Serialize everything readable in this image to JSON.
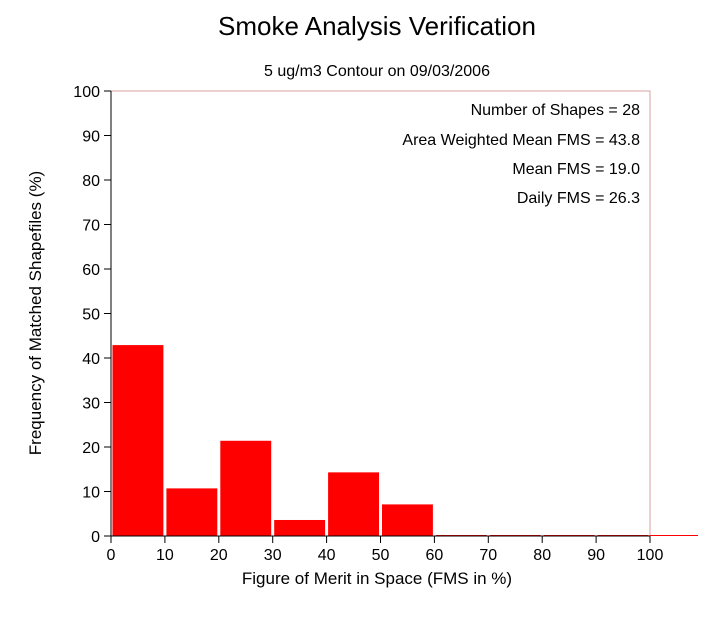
{
  "chart_data": {
    "type": "bar",
    "title": "Smoke Analysis Verification",
    "subtitle": "5 ug/m3 Contour on 09/03/2006",
    "xlabel": "Figure of Merit in Space (FMS in %)",
    "ylabel": "Frequency of Matched Shapefiles (%)",
    "xlim": [
      0,
      100
    ],
    "ylim": [
      0,
      100
    ],
    "x_ticks": [
      "0",
      "10",
      "20",
      "30",
      "40",
      "50",
      "60",
      "70",
      "80",
      "90",
      "100"
    ],
    "y_ticks": [
      "0",
      "10",
      "20",
      "30",
      "40",
      "50",
      "60",
      "70",
      "80",
      "90",
      "100"
    ],
    "bins": [
      {
        "start": 0,
        "end": 10,
        "value": 42.9
      },
      {
        "start": 10,
        "end": 20,
        "value": 10.7
      },
      {
        "start": 20,
        "end": 30,
        "value": 21.4
      },
      {
        "start": 30,
        "end": 40,
        "value": 3.6
      },
      {
        "start": 40,
        "end": 50,
        "value": 14.3
      },
      {
        "start": 50,
        "end": 60,
        "value": 7.1
      },
      {
        "start": 60,
        "end": 70,
        "value": 0
      },
      {
        "start": 70,
        "end": 80,
        "value": 0
      },
      {
        "start": 80,
        "end": 90,
        "value": 0
      },
      {
        "start": 90,
        "end": 100,
        "value": 0
      }
    ],
    "bar_color": "#ff0000",
    "grid": false,
    "stats": [
      "Number of Shapes = 28",
      "Area Weighted Mean FMS = 43.8",
      "Mean FMS = 19.0",
      "Daily FMS = 26.3"
    ]
  }
}
